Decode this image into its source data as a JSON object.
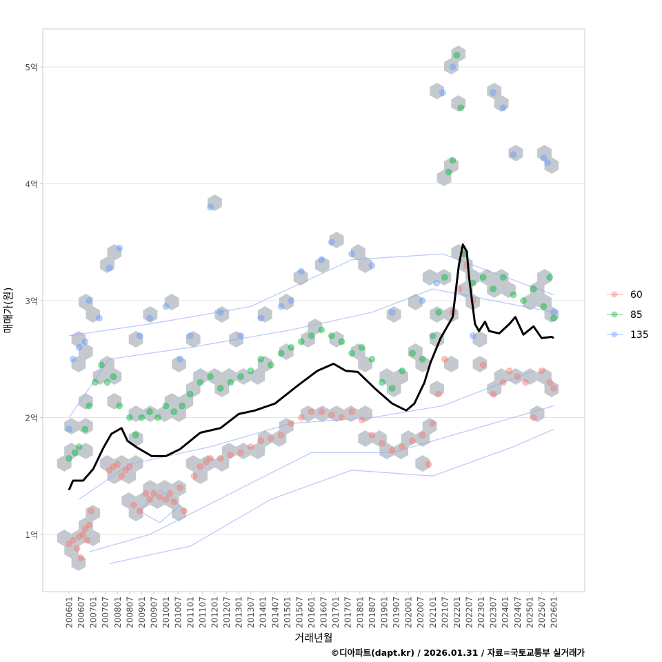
{
  "chart_data": {
    "type": "scatter",
    "title": "",
    "xlabel": "거래년월",
    "ylabel": "매매가(원)",
    "caption": "©디아파트(dapt.kr) / 2026.01.31 / 자료=국토교통부 실거래가",
    "x_unit": "months since 2006-01",
    "xlim": [
      -13,
      255
    ],
    "ylim": [
      0.5,
      5.35
    ],
    "grid": true,
    "legend_position": "right",
    "x_tick_labels": [
      "200601",
      "200607",
      "200701",
      "200707",
      "200801",
      "200807",
      "200901",
      "200907",
      "201001",
      "201007",
      "201101",
      "201107",
      "201201",
      "201207",
      "201301",
      "201307",
      "201401",
      "201407",
      "201501",
      "201507",
      "201601",
      "201607",
      "201701",
      "201707",
      "201801",
      "201807",
      "201901",
      "201907",
      "202001",
      "202007",
      "202101",
      "202107",
      "202201",
      "202207",
      "202301",
      "202307",
      "202401",
      "202407",
      "202501",
      "202507",
      "202601"
    ],
    "y_ticks": [
      {
        "value": 1,
        "label": "1억"
      },
      {
        "value": 2,
        "label": "2억"
      },
      {
        "value": 3,
        "label": "3억"
      },
      {
        "value": 4,
        "label": "4억"
      },
      {
        "value": 5,
        "label": "5억"
      }
    ],
    "series": [
      {
        "name": "60",
        "color": "#F8766D",
        "points": [
          [
            0,
            0.92
          ],
          [
            2,
            0.95
          ],
          [
            4,
            0.88
          ],
          [
            5,
            0.98
          ],
          [
            6,
            0.8
          ],
          [
            7,
            1.0
          ],
          [
            8,
            1.05
          ],
          [
            9,
            0.95
          ],
          [
            10,
            1.08
          ],
          [
            11,
            1.2
          ],
          [
            20,
            1.55
          ],
          [
            22,
            1.58
          ],
          [
            24,
            1.6
          ],
          [
            26,
            1.5
          ],
          [
            28,
            1.55
          ],
          [
            30,
            1.58
          ],
          [
            32,
            1.25
          ],
          [
            35,
            1.2
          ],
          [
            38,
            1.35
          ],
          [
            40,
            1.3
          ],
          [
            42,
            1.35
          ],
          [
            45,
            1.32
          ],
          [
            48,
            1.3
          ],
          [
            50,
            1.35
          ],
          [
            52,
            1.28
          ],
          [
            55,
            1.4
          ],
          [
            57,
            1.2
          ],
          [
            62,
            1.5
          ],
          [
            65,
            1.58
          ],
          [
            68,
            1.62
          ],
          [
            70,
            1.65
          ],
          [
            75,
            1.65
          ],
          [
            80,
            1.68
          ],
          [
            85,
            1.7
          ],
          [
            90,
            1.75
          ],
          [
            95,
            1.8
          ],
          [
            100,
            1.82
          ],
          [
            105,
            1.85
          ],
          [
            110,
            1.95
          ],
          [
            115,
            2.0
          ],
          [
            120,
            2.05
          ],
          [
            125,
            2.05
          ],
          [
            130,
            2.02
          ],
          [
            135,
            2.0
          ],
          [
            140,
            2.05
          ],
          [
            145,
            1.98
          ],
          [
            150,
            1.85
          ],
          [
            155,
            1.78
          ],
          [
            160,
            1.72
          ],
          [
            165,
            1.75
          ],
          [
            170,
            1.8
          ],
          [
            175,
            1.85
          ],
          [
            178,
            1.6
          ],
          [
            180,
            1.95
          ],
          [
            183,
            2.2
          ],
          [
            186,
            2.5
          ],
          [
            190,
            2.9
          ],
          [
            193,
            3.1
          ],
          [
            195,
            3.4
          ],
          [
            197,
            3.3
          ],
          [
            200,
            3.0
          ],
          [
            205,
            2.45
          ],
          [
            210,
            2.2
          ],
          [
            215,
            2.3
          ],
          [
            218,
            2.4
          ],
          [
            222,
            2.35
          ],
          [
            226,
            2.3
          ],
          [
            230,
            2.0
          ],
          [
            234,
            2.4
          ],
          [
            238,
            2.3
          ],
          [
            240,
            2.25
          ]
        ]
      },
      {
        "name": "85",
        "color": "#00BA38",
        "points": [
          [
            0,
            1.65
          ],
          [
            3,
            1.7
          ],
          [
            5,
            1.75
          ],
          [
            8,
            1.9
          ],
          [
            10,
            2.1
          ],
          [
            13,
            2.3
          ],
          [
            16,
            2.45
          ],
          [
            19,
            2.3
          ],
          [
            22,
            2.35
          ],
          [
            25,
            2.1
          ],
          [
            30,
            2.0
          ],
          [
            33,
            1.85
          ],
          [
            36,
            2.0
          ],
          [
            40,
            2.05
          ],
          [
            44,
            2.0
          ],
          [
            48,
            2.1
          ],
          [
            52,
            2.05
          ],
          [
            56,
            2.1
          ],
          [
            60,
            2.2
          ],
          [
            65,
            2.3
          ],
          [
            70,
            2.35
          ],
          [
            75,
            2.25
          ],
          [
            80,
            2.3
          ],
          [
            85,
            2.35
          ],
          [
            90,
            2.4
          ],
          [
            95,
            2.5
          ],
          [
            100,
            2.45
          ],
          [
            105,
            2.55
          ],
          [
            110,
            2.6
          ],
          [
            115,
            2.65
          ],
          [
            120,
            2.7
          ],
          [
            125,
            2.75
          ],
          [
            130,
            2.7
          ],
          [
            135,
            2.65
          ],
          [
            140,
            2.55
          ],
          [
            145,
            2.6
          ],
          [
            150,
            2.5
          ],
          [
            155,
            2.3
          ],
          [
            160,
            2.25
          ],
          [
            165,
            2.4
          ],
          [
            170,
            2.55
          ],
          [
            175,
            2.5
          ],
          [
            180,
            2.7
          ],
          [
            183,
            2.9
          ],
          [
            186,
            3.2
          ],
          [
            188,
            4.1
          ],
          [
            190,
            4.2
          ],
          [
            192,
            5.1
          ],
          [
            194,
            4.65
          ],
          [
            196,
            3.4
          ],
          [
            200,
            3.15
          ],
          [
            205,
            3.2
          ],
          [
            210,
            3.1
          ],
          [
            215,
            3.2
          ],
          [
            220,
            3.05
          ],
          [
            225,
            3.0
          ],
          [
            230,
            3.1
          ],
          [
            235,
            2.95
          ],
          [
            238,
            3.2
          ],
          [
            240,
            2.85
          ]
        ]
      },
      {
        "name": "135",
        "color": "#619CFF",
        "points": [
          [
            0,
            1.9
          ],
          [
            2,
            2.5
          ],
          [
            5,
            2.6
          ],
          [
            8,
            2.65
          ],
          [
            10,
            3.0
          ],
          [
            15,
            2.85
          ],
          [
            20,
            3.28
          ],
          [
            25,
            3.45
          ],
          [
            35,
            2.7
          ],
          [
            40,
            2.85
          ],
          [
            48,
            2.95
          ],
          [
            55,
            2.5
          ],
          [
            60,
            2.7
          ],
          [
            70,
            3.8
          ],
          [
            75,
            2.9
          ],
          [
            85,
            2.7
          ],
          [
            95,
            2.85
          ],
          [
            105,
            2.95
          ],
          [
            110,
            3.0
          ],
          [
            115,
            3.25
          ],
          [
            125,
            3.35
          ],
          [
            130,
            3.5
          ],
          [
            140,
            3.4
          ],
          [
            150,
            3.3
          ],
          [
            160,
            2.9
          ],
          [
            175,
            3.0
          ],
          [
            182,
            3.15
          ],
          [
            185,
            4.78
          ],
          [
            190,
            5.0
          ],
          [
            200,
            2.7
          ],
          [
            210,
            4.78
          ],
          [
            215,
            4.65
          ],
          [
            220,
            4.25
          ],
          [
            235,
            4.22
          ],
          [
            237,
            4.18
          ],
          [
            240,
            2.9
          ]
        ]
      }
    ],
    "median_line": {
      "name": "median",
      "color": "#000000",
      "points": [
        [
          0,
          1.38
        ],
        [
          2,
          1.46
        ],
        [
          7,
          1.46
        ],
        [
          12,
          1.56
        ],
        [
          17,
          1.74
        ],
        [
          21,
          1.86
        ],
        [
          26,
          1.91
        ],
        [
          29,
          1.8
        ],
        [
          34,
          1.74
        ],
        [
          41,
          1.67
        ],
        [
          48,
          1.67
        ],
        [
          55,
          1.73
        ],
        [
          65,
          1.87
        ],
        [
          75,
          1.91
        ],
        [
          84,
          2.03
        ],
        [
          92,
          2.06
        ],
        [
          102,
          2.12
        ],
        [
          113,
          2.27
        ],
        [
          123,
          2.4
        ],
        [
          131,
          2.46
        ],
        [
          137,
          2.4
        ],
        [
          143,
          2.39
        ],
        [
          152,
          2.24
        ],
        [
          160,
          2.12
        ],
        [
          167,
          2.06
        ],
        [
          171,
          2.12
        ],
        [
          176,
          2.3
        ],
        [
          179,
          2.47
        ],
        [
          184,
          2.68
        ],
        [
          190,
          2.86
        ],
        [
          193,
          3.3
        ],
        [
          195,
          3.48
        ],
        [
          197,
          3.42
        ],
        [
          198,
          3.21
        ],
        [
          201,
          2.8
        ],
        [
          203,
          2.74
        ],
        [
          206,
          2.82
        ],
        [
          208,
          2.74
        ],
        [
          213,
          2.72
        ],
        [
          218,
          2.8
        ],
        [
          221,
          2.86
        ],
        [
          225,
          2.71
        ],
        [
          230,
          2.78
        ],
        [
          234,
          2.68
        ],
        [
          239,
          2.69
        ],
        [
          240,
          2.68
        ]
      ]
    },
    "density_contours": [
      [
        [
          0,
          2.7
        ],
        [
          40,
          2.8
        ],
        [
          90,
          2.95
        ],
        [
          140,
          3.35
        ],
        [
          185,
          3.4
        ],
        [
          240,
          3.05
        ]
      ],
      [
        [
          0,
          2.0
        ],
        [
          20,
          2.5
        ],
        [
          60,
          2.6
        ],
        [
          110,
          2.75
        ],
        [
          150,
          2.9
        ],
        [
          180,
          3.1
        ],
        [
          240,
          2.9
        ]
      ],
      [
        [
          5,
          1.3
        ],
        [
          30,
          1.6
        ],
        [
          70,
          1.75
        ],
        [
          110,
          1.95
        ],
        [
          150,
          2.0
        ],
        [
          185,
          2.1
        ],
        [
          230,
          2.4
        ]
      ],
      [
        [
          10,
          0.85
        ],
        [
          40,
          1.0
        ],
        [
          80,
          1.35
        ],
        [
          120,
          1.7
        ],
        [
          160,
          1.7
        ],
        [
          200,
          1.9
        ],
        [
          240,
          2.1
        ]
      ],
      [
        [
          20,
          0.75
        ],
        [
          60,
          0.9
        ],
        [
          100,
          1.3
        ],
        [
          140,
          1.55
        ],
        [
          180,
          1.5
        ],
        [
          220,
          1.75
        ],
        [
          240,
          1.9
        ]
      ],
      [
        [
          35,
          1.2
        ],
        [
          45,
          1.1
        ],
        [
          55,
          1.25
        ],
        [
          45,
          1.38
        ],
        [
          35,
          1.2
        ]
      ]
    ]
  }
}
